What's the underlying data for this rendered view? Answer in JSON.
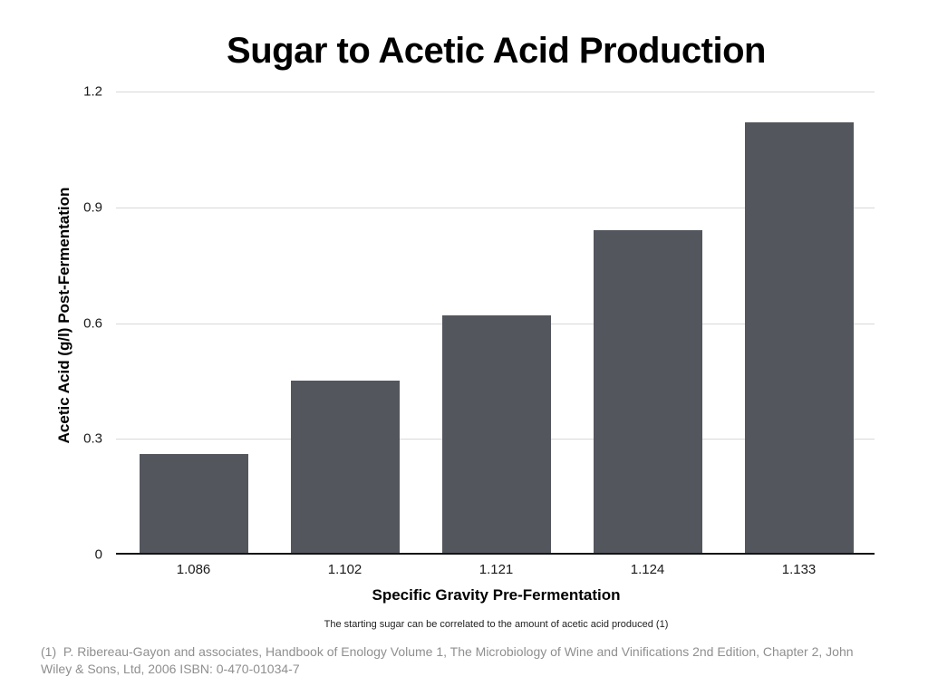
{
  "chart_data": {
    "type": "bar",
    "title": "Sugar to Acetic Acid Production",
    "categories": [
      "1.086",
      "1.102",
      "1.121",
      "1.124",
      "1.133"
    ],
    "values": [
      0.26,
      0.45,
      0.62,
      0.84,
      1.12
    ],
    "xlabel": "Specific Gravity Pre-Fermentation",
    "ylabel": "Acetic Acid (g/l) Post-Fermentation",
    "ylim": [
      0,
      1.2
    ],
    "yticks": [
      0,
      0.3,
      0.6,
      0.9,
      1.2
    ],
    "grid": true,
    "legend": "none",
    "bar_color": "#53565D",
    "gridline_color": "#d9d9d9",
    "baseline_color": "#141414"
  },
  "caption": "The starting sugar can be correlated to the amount of acetic acid produced (1)",
  "footnote": "(1)  P. Ribereau-Gayon and associates, Handbook of Enology Volume 1, The Microbiology of Wine and Vinifications 2nd Edition, Chapter 2, John Wiley & Sons, Ltd, 2006 ISBN: 0-470-01034-7"
}
